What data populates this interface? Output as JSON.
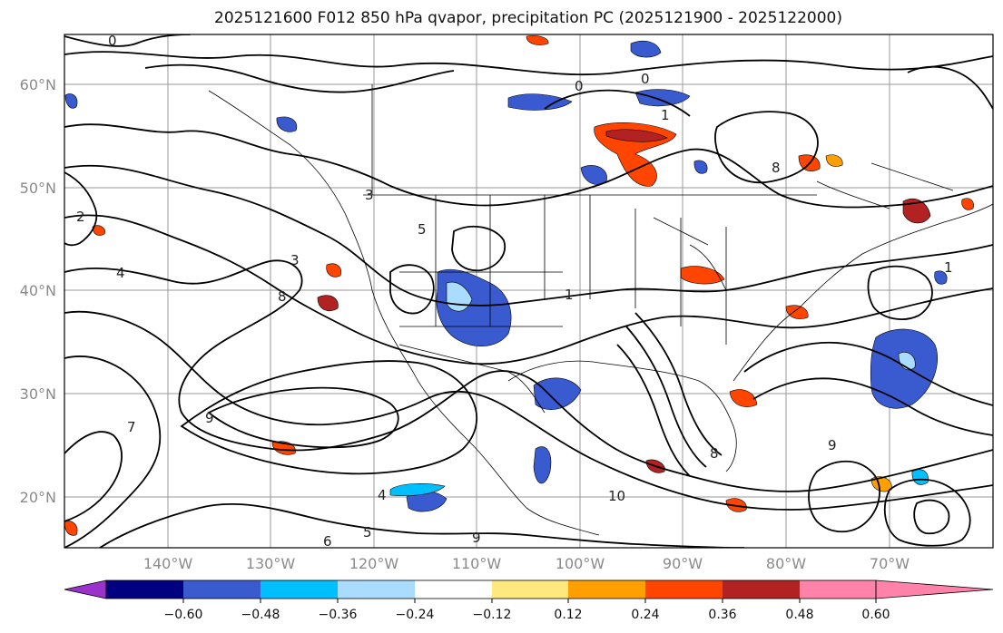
{
  "figure": {
    "title": "2025121600 F012 850 hPa qvapor, precipitation PC (2025121900 - 2025122000)"
  },
  "map": {
    "lat_labels": [
      "60°N",
      "50°N",
      "40°N",
      "30°N",
      "20°N"
    ],
    "lon_labels": [
      "140°W",
      "130°W",
      "120°W",
      "110°W",
      "100°W",
      "90°W",
      "80°W",
      "70°W"
    ],
    "contour_labels": [
      "0",
      "0",
      "1",
      "2",
      "3",
      "4",
      "5",
      "6",
      "7",
      "8",
      "9",
      "1",
      "3",
      "4",
      "5",
      "0",
      "8",
      "9",
      "10",
      "8",
      "9",
      "1"
    ],
    "line_color": "#000000",
    "border_color": "#000000"
  },
  "colorbar": {
    "tick_labels": [
      "−0.60",
      "−0.48",
      "−0.36",
      "−0.24",
      "−0.12",
      "0.12",
      "0.24",
      "0.36",
      "0.48",
      "0.60"
    ],
    "colors": [
      "#9933cc",
      "#000080",
      "#3a5bd0",
      "#00bfff",
      "#aadcff",
      "#ffffff",
      "#ffe97f",
      "#ffa000",
      "#ff4500",
      "#b22222",
      "#ff82ab"
    ]
  }
}
